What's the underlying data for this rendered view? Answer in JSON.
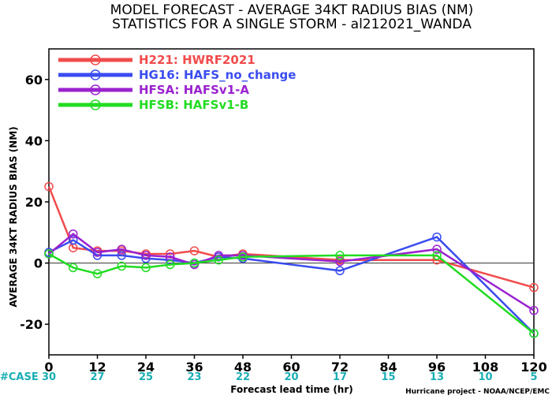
{
  "chart_data": {
    "type": "line",
    "title": "MODEL FORECAST - AVERAGE 34KT RADIUS BIAS (NM)",
    "subtitle": "STATISTICS FOR A SINGLE STORM - al212021_WANDA",
    "xlabel": "Forecast lead time (hr)",
    "ylabel": "AVERAGE 34KT RADIUS BIAS (NM)",
    "xlim": [
      0,
      120
    ],
    "ylim": [
      -30,
      70
    ],
    "x_ticks": [
      0,
      12,
      24,
      36,
      48,
      60,
      72,
      84,
      96,
      108,
      120
    ],
    "y_ticks": [
      -20,
      0,
      20,
      40,
      60
    ],
    "zero_line": true,
    "legend_position": "top-left",
    "series": [
      {
        "name": "H221",
        "label": "HWRF2021",
        "color": "#f14b4b",
        "x": [
          0,
          6,
          12,
          18,
          24,
          30,
          36,
          42,
          48,
          72,
          96,
          120
        ],
        "values": [
          25,
          5,
          4,
          4,
          3,
          3,
          4,
          2,
          3,
          1,
          1,
          -8
        ]
      },
      {
        "name": "HG16",
        "label": "HAFS_no_change",
        "color": "#3a4cf0",
        "x": [
          0,
          6,
          12,
          18,
          24,
          30,
          36,
          42,
          48,
          72,
          96,
          120
        ],
        "values": [
          3.5,
          7.5,
          2.5,
          2.5,
          1.5,
          1,
          0,
          2,
          1.5,
          -2.5,
          8.5,
          -23
        ]
      },
      {
        "name": "HFSA",
        "label": "HAFSv1-A",
        "color": "#9a22cf",
        "x": [
          0,
          6,
          12,
          18,
          24,
          30,
          36,
          42,
          48,
          72,
          96,
          120
        ],
        "values": [
          3,
          9.5,
          3.5,
          4.5,
          2.5,
          2,
          -0.5,
          2.5,
          2.5,
          0.5,
          4.5,
          -15.5
        ]
      },
      {
        "name": "HFSB",
        "label": "HAFSv1-B",
        "color": "#22dc22",
        "x": [
          0,
          6,
          12,
          18,
          24,
          30,
          36,
          42,
          48,
          72,
          96,
          120
        ],
        "values": [
          3,
          -1.5,
          -3.5,
          -1,
          -1.5,
          -0.5,
          0,
          1,
          2,
          2.5,
          2.5,
          -23
        ]
      }
    ],
    "case_label": "#CASE",
    "case_counts": [
      "30",
      "27",
      "25",
      "23",
      "22",
      "20",
      "17",
      "15",
      "13",
      "10",
      "5"
    ]
  },
  "credit": "Hurricane project - NOAA/NCEP/EMC"
}
